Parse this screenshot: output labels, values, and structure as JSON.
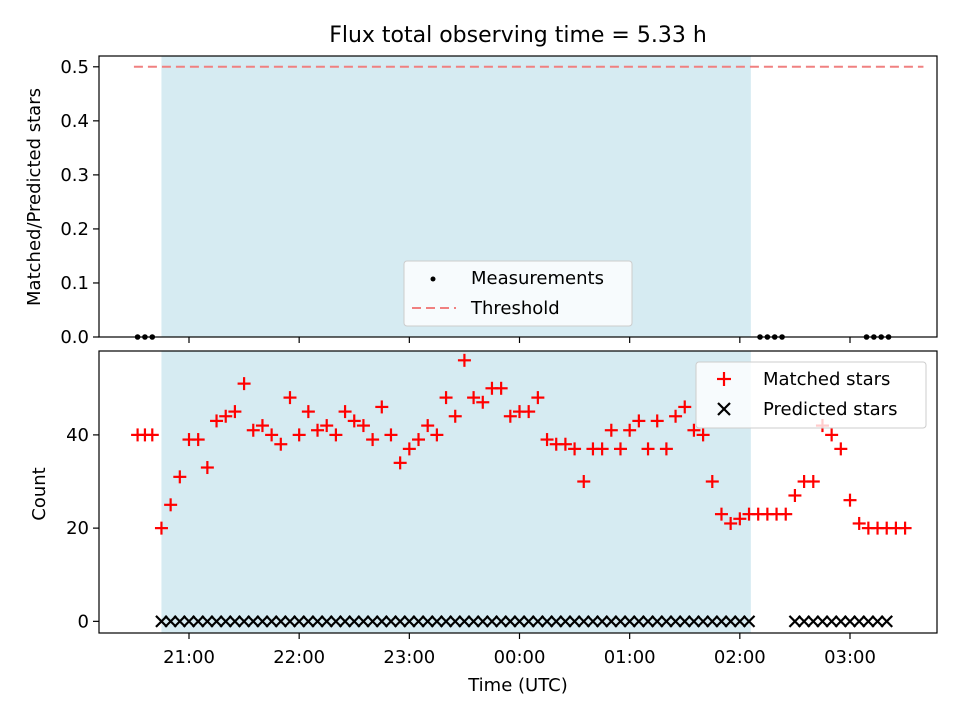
{
  "title": "Flux total observing time = 5.33 h",
  "colors": {
    "measure": "#000000",
    "threshold": "#f08080",
    "matched": "#ff0000",
    "predicted": "#000000",
    "shade": "#add8e6"
  },
  "chart_data": [
    {
      "type": "scatter",
      "ylabel": "Matched/Predicted stars",
      "ylim": [
        0,
        0.52
      ],
      "yticks": [
        "0.0",
        "0.1",
        "0.2",
        "0.3",
        "0.4",
        "0.5"
      ],
      "shaded_range": [
        "20:45",
        "02:06"
      ],
      "threshold": {
        "name": "Threshold",
        "value": 0.5,
        "x_range": [
          "20:30",
          "03:40"
        ]
      },
      "series": [
        {
          "name": "Measurements",
          "x": [
            "20:32",
            "20:36",
            "20:40",
            "02:11",
            "02:15",
            "02:19",
            "02:23",
            "03:09",
            "03:13",
            "03:17",
            "03:21"
          ],
          "y": [
            0,
            0,
            0,
            0,
            0,
            0,
            0,
            0,
            0,
            0,
            0
          ]
        }
      ],
      "legend": "bottom-center"
    },
    {
      "type": "scatter",
      "ylabel": "Count",
      "xlabel": "Time (UTC)",
      "ylim": [
        -2.5,
        58
      ],
      "yticks": [
        "0",
        "20",
        "40"
      ],
      "xticks": [
        "21:00",
        "22:00",
        "23:00",
        "00:00",
        "01:00",
        "02:00",
        "03:00"
      ],
      "shaded_range": [
        "20:45",
        "02:06"
      ],
      "series": [
        {
          "name": "Matched stars",
          "x": [
            "20:32",
            "20:36",
            "20:40",
            "20:45",
            "20:50",
            "20:55",
            "21:00",
            "21:05",
            "21:10",
            "21:15",
            "21:20",
            "21:25",
            "21:30",
            "21:35",
            "21:40",
            "21:45",
            "21:50",
            "21:55",
            "22:00",
            "22:05",
            "22:10",
            "22:15",
            "22:20",
            "22:25",
            "22:30",
            "22:35",
            "22:40",
            "22:45",
            "22:50",
            "22:55",
            "23:00",
            "23:05",
            "23:10",
            "23:15",
            "23:20",
            "23:25",
            "23:30",
            "23:35",
            "23:40",
            "23:45",
            "23:50",
            "23:55",
            "00:00",
            "00:05",
            "00:10",
            "00:15",
            "00:20",
            "00:25",
            "00:30",
            "00:35",
            "00:40",
            "00:45",
            "00:50",
            "00:55",
            "01:00",
            "01:05",
            "01:10",
            "01:15",
            "01:20",
            "01:25",
            "01:30",
            "01:35",
            "01:40",
            "01:45",
            "01:50",
            "01:55",
            "02:00",
            "02:05",
            "02:10",
            "02:15",
            "02:20",
            "02:25",
            "02:30",
            "02:35",
            "02:40",
            "02:45",
            "02:50",
            "02:55",
            "03:00",
            "03:05",
            "03:10",
            "03:15",
            "03:20",
            "03:25",
            "03:30"
          ],
          "y": [
            40,
            40,
            40,
            20,
            25,
            31,
            39,
            39,
            33,
            43,
            44,
            45,
            51,
            41,
            42,
            40,
            38,
            48,
            40,
            45,
            41,
            42,
            40,
            45,
            43,
            42,
            39,
            46,
            40,
            34,
            37,
            39,
            42,
            40,
            48,
            44,
            56,
            48,
            47,
            50,
            50,
            44,
            45,
            45,
            48,
            39,
            38,
            38,
            37,
            30,
            37,
            37,
            41,
            37,
            41,
            43,
            37,
            43,
            37,
            44,
            46,
            41,
            40,
            30,
            23,
            21,
            22,
            23,
            23,
            23,
            23,
            23,
            27,
            30,
            30,
            42,
            40,
            37,
            26,
            21,
            20,
            20,
            20,
            20,
            20
          ]
        },
        {
          "name": "Predicted stars",
          "x": [
            "20:45",
            "20:50",
            "20:55",
            "21:00",
            "21:05",
            "21:10",
            "21:15",
            "21:20",
            "21:25",
            "21:30",
            "21:35",
            "21:40",
            "21:45",
            "21:50",
            "21:55",
            "22:00",
            "22:05",
            "22:10",
            "22:15",
            "22:20",
            "22:25",
            "22:30",
            "22:35",
            "22:40",
            "22:45",
            "22:50",
            "22:55",
            "23:00",
            "23:05",
            "23:10",
            "23:15",
            "23:20",
            "23:25",
            "23:30",
            "23:35",
            "23:40",
            "23:45",
            "23:50",
            "23:55",
            "00:00",
            "00:05",
            "00:10",
            "00:15",
            "00:20",
            "00:25",
            "00:30",
            "00:35",
            "00:40",
            "00:45",
            "00:50",
            "00:55",
            "01:00",
            "01:05",
            "01:10",
            "01:15",
            "01:20",
            "01:25",
            "01:30",
            "01:35",
            "01:40",
            "01:45",
            "01:50",
            "01:55",
            "02:00",
            "02:05",
            "02:30",
            "02:35",
            "02:40",
            "02:45",
            "02:50",
            "02:55",
            "03:00",
            "03:05",
            "03:10",
            "03:15",
            "03:20"
          ],
          "y": [
            0,
            0,
            0,
            0,
            0,
            0,
            0,
            0,
            0,
            0,
            0,
            0,
            0,
            0,
            0,
            0,
            0,
            0,
            0,
            0,
            0,
            0,
            0,
            0,
            0,
            0,
            0,
            0,
            0,
            0,
            0,
            0,
            0,
            0,
            0,
            0,
            0,
            0,
            0,
            0,
            0,
            0,
            0,
            0,
            0,
            0,
            0,
            0,
            0,
            0,
            0,
            0,
            0,
            0,
            0,
            0,
            0,
            0,
            0,
            0,
            0,
            0,
            0,
            0,
            0,
            0,
            0,
            0,
            0,
            0,
            0,
            0,
            0,
            0,
            0,
            0
          ]
        }
      ],
      "legend": "top-right"
    }
  ]
}
